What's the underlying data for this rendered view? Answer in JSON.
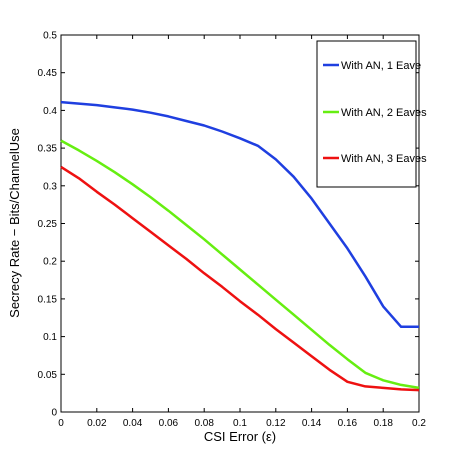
{
  "chart_data": {
    "type": "line",
    "xlabel": "CSI Error (ε)",
    "ylabel": "Secrecy Rate  − Bits/ChannelUse",
    "xlim": [
      0,
      0.2
    ],
    "ylim": [
      0,
      0.5
    ],
    "x_ticks": [
      "0",
      "0.02",
      "0.04",
      "0.06",
      "0.08",
      "0.1",
      "0.12",
      "0.14",
      "0.16",
      "0.18",
      "0.2"
    ],
    "y_ticks": [
      "0",
      "0.05",
      "0.1",
      "0.15",
      "0.2",
      "0.25",
      "0.3",
      "0.35",
      "0.4",
      "0.45",
      "0.5"
    ],
    "legend_position": "top-right",
    "grid": false,
    "series": [
      {
        "name": "With AN, 1 Eave",
        "color": "#1f3fe0",
        "x": [
          0,
          0.01,
          0.02,
          0.03,
          0.04,
          0.05,
          0.06,
          0.07,
          0.08,
          0.09,
          0.1,
          0.11,
          0.12,
          0.13,
          0.14,
          0.15,
          0.16,
          0.17,
          0.18,
          0.19,
          0.2
        ],
        "y": [
          0.411,
          0.409,
          0.407,
          0.404,
          0.401,
          0.397,
          0.392,
          0.386,
          0.38,
          0.372,
          0.363,
          0.353,
          0.335,
          0.312,
          0.283,
          0.25,
          0.217,
          0.18,
          0.14,
          0.113,
          0.113
        ]
      },
      {
        "name": "With AN, 2 Eaves",
        "color": "#66ee11",
        "x": [
          0,
          0.01,
          0.02,
          0.03,
          0.04,
          0.05,
          0.06,
          0.07,
          0.08,
          0.09,
          0.1,
          0.11,
          0.12,
          0.13,
          0.14,
          0.15,
          0.16,
          0.17,
          0.18,
          0.19,
          0.2
        ],
        "y": [
          0.36,
          0.347,
          0.333,
          0.318,
          0.302,
          0.285,
          0.267,
          0.248,
          0.229,
          0.209,
          0.189,
          0.169,
          0.149,
          0.129,
          0.109,
          0.089,
          0.07,
          0.052,
          0.042,
          0.036,
          0.032
        ]
      },
      {
        "name": "With AN, 3 Eaves",
        "color": "#ee1111",
        "x": [
          0,
          0.01,
          0.02,
          0.03,
          0.04,
          0.05,
          0.06,
          0.07,
          0.08,
          0.09,
          0.1,
          0.11,
          0.12,
          0.13,
          0.14,
          0.15,
          0.16,
          0.17,
          0.18,
          0.19,
          0.2
        ],
        "y": [
          0.325,
          0.31,
          0.292,
          0.275,
          0.257,
          0.239,
          0.221,
          0.203,
          0.184,
          0.166,
          0.147,
          0.129,
          0.11,
          0.092,
          0.074,
          0.056,
          0.04,
          0.034,
          0.032,
          0.03,
          0.029
        ]
      }
    ]
  }
}
